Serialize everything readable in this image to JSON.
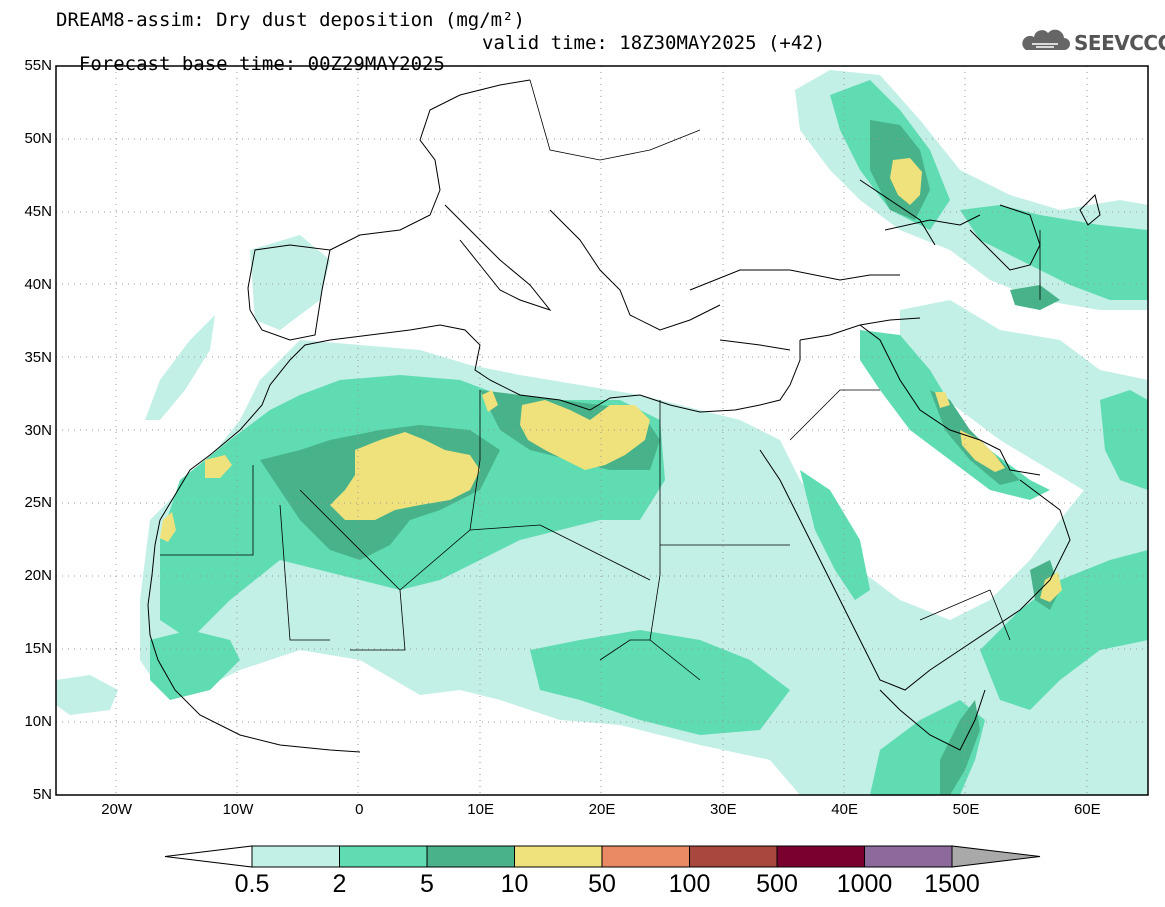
{
  "header": {
    "line1": "DREAM8-assim: Dry dust deposition (mg/m²)",
    "line2_base": "Forecast base time: 00Z29MAY2025",
    "line2_valid": "valid time: 18Z30MAY2025 (+42)",
    "logo_text": "SEEVCCC",
    "logo_icon": "cloud-icon"
  },
  "map": {
    "lat_labels": [
      "55N",
      "50N",
      "45N",
      "40N",
      "35N",
      "30N",
      "25N",
      "20N",
      "15N",
      "10N",
      "5N"
    ],
    "lon_labels": [
      "20W",
      "10W",
      "0",
      "10E",
      "20E",
      "30E",
      "40E",
      "50E",
      "60E"
    ],
    "lat_range": [
      5,
      55
    ],
    "lon_range": [
      -25,
      65
    ]
  },
  "colorbar": {
    "labels": [
      "0.5",
      "2",
      "5",
      "10",
      "50",
      "100",
      "500",
      "1000",
      "1500"
    ],
    "colors": [
      "#c2efe6",
      "#5fdcb2",
      "#48b38a",
      "#efe27c",
      "#e98a64",
      "#a8473e",
      "#7a0030",
      "#8c6a9c"
    ],
    "under_color": "#ffffff",
    "over_color": "#a9a9a9"
  }
}
